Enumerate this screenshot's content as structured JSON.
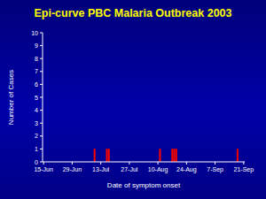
{
  "chart_data": {
    "type": "bar",
    "title": "Epi-curve PBC Malaria Outbreak 2003",
    "x_label": "Date of symptom onset",
    "y_label": "Number of Cases",
    "categories": [
      "15-Jun",
      null,
      null,
      null,
      null,
      null,
      null,
      null,
      null,
      null,
      null,
      null,
      null,
      null,
      "29-Jun",
      null,
      null,
      null,
      null,
      null,
      null,
      null,
      null,
      null,
      null,
      null,
      null,
      null,
      "13-Jul",
      null,
      null,
      null,
      null,
      null,
      null,
      null,
      null,
      null,
      null,
      null,
      null,
      null,
      "27-Jul",
      null,
      null,
      null,
      null,
      null,
      null,
      null,
      null,
      null,
      null,
      null,
      null,
      null,
      "10-Aug",
      null,
      null,
      null,
      null,
      null,
      null,
      null,
      null,
      null,
      null,
      null,
      null,
      null,
      "24-Aug",
      null,
      null,
      null,
      null,
      null,
      null,
      null,
      null,
      null,
      null,
      null,
      null,
      null,
      "7-Sep",
      null,
      null,
      null,
      null,
      null,
      null,
      null,
      null,
      null,
      null,
      null,
      null,
      null,
      "21-Sep"
    ],
    "values": [
      0,
      0,
      0,
      0,
      0,
      0,
      0,
      0,
      0,
      0,
      0,
      0,
      0,
      0,
      0,
      0,
      0,
      0,
      0,
      0,
      0,
      0,
      0,
      0,
      0,
      1,
      0,
      0,
      0,
      0,
      0,
      1,
      1,
      0,
      0,
      0,
      0,
      0,
      0,
      0,
      0,
      0,
      0,
      0,
      0,
      0,
      0,
      0,
      0,
      0,
      0,
      0,
      0,
      0,
      0,
      0,
      0,
      1,
      0,
      0,
      0,
      0,
      0,
      1,
      1,
      1,
      0,
      0,
      0,
      0,
      0,
      0,
      0,
      0,
      0,
      0,
      0,
      0,
      0,
      0,
      0,
      0,
      0,
      0,
      0,
      0,
      0,
      0,
      0,
      0,
      0,
      0,
      0,
      0,
      0,
      1,
      0,
      0,
      0
    ],
    "color": "#ff0000",
    "ylim": [
      0,
      10
    ],
    "yticks": [
      0,
      1,
      2,
      3,
      4,
      5,
      6,
      7,
      8,
      9,
      10
    ],
    "grid": false
  }
}
